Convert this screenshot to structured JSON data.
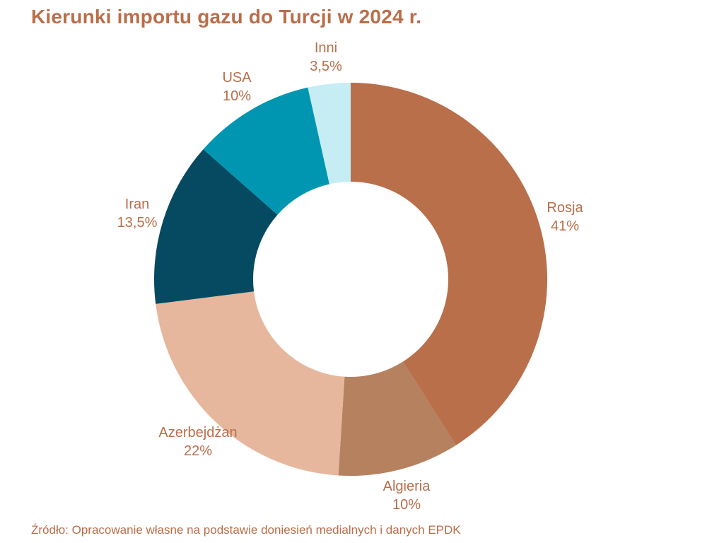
{
  "title": "Kierunki importu gazu do Turcji w 2024 r.",
  "source": "Źródło: Opracowanie własne na podstawie doniesień medialnych i danych EPDK",
  "colors": {
    "title_text": "#B96E4A",
    "label_text": "#B96E4A",
    "source_text": "#B96E4A",
    "background": "#FFFFFF"
  },
  "chart_data": {
    "type": "pie",
    "subtype": "donut",
    "title": "Kierunki importu gazu do Turcji w 2024 r.",
    "start_angle_deg": 0,
    "direction": "clockwise",
    "inner_radius_ratio": 0.497,
    "legend": "none",
    "label_style": "outside, category name over percent value, Polish decimal comma",
    "segments": [
      {
        "label": "Rosja",
        "value": 41,
        "display": "41%",
        "color": "#B86F4A"
      },
      {
        "label": "Algieria",
        "value": 10,
        "display": "10%",
        "color": "#B5815F"
      },
      {
        "label": "Azerbejdżan",
        "value": 22,
        "display": "22%",
        "color": "#E6B79C"
      },
      {
        "label": "Iran",
        "value": 13.5,
        "display": "13,5%",
        "color": "#054A60"
      },
      {
        "label": "USA",
        "value": 10,
        "display": "10%",
        "color": "#0096B1"
      },
      {
        "label": "Inni",
        "value": 3.5,
        "display": "3,5%",
        "color": "#C6ECF4"
      }
    ]
  }
}
